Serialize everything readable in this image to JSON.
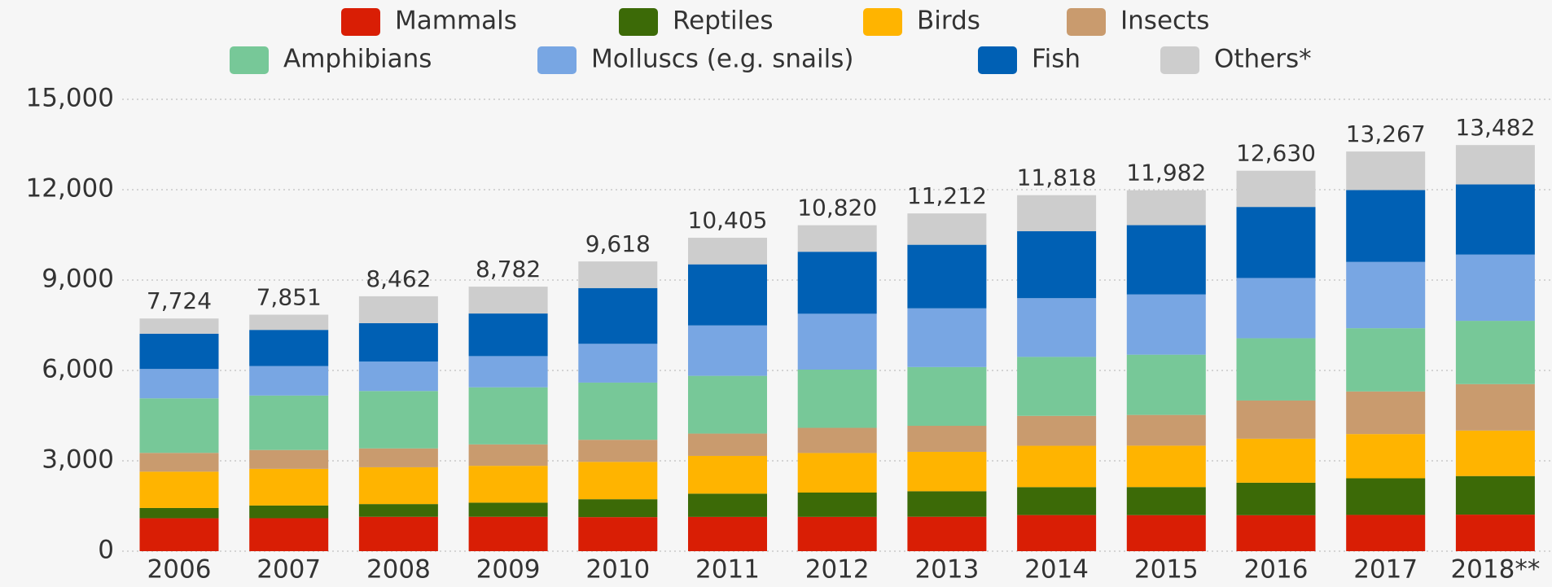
{
  "chart_data": {
    "type": "stacked-bar",
    "categories": [
      "2006",
      "2007",
      "2008",
      "2009",
      "2010",
      "2011",
      "2012",
      "2013",
      "2014",
      "2015",
      "2016",
      "2017",
      "2018**"
    ],
    "series": [
      {
        "name": "Mammals",
        "color": "#d91e05",
        "values": [
          1093,
          1094,
          1141,
          1142,
          1131,
          1138,
          1139,
          1143,
          1199,
          1197,
          1194,
          1204,
          1214
        ]
      },
      {
        "name": "Reptiles",
        "color": "#3c6a07",
        "values": [
          341,
          422,
          423,
          469,
          594,
          772,
          807,
          847,
          927,
          931,
          1079,
          1215,
          1280
        ]
      },
      {
        "name": "Birds",
        "color": "#ffb400",
        "values": [
          1206,
          1217,
          1222,
          1223,
          1240,
          1253,
          1313,
          1308,
          1373,
          1375,
          1460,
          1469,
          1510
        ]
      },
      {
        "name": "Insects",
        "color": "#c99b6e",
        "values": [
          623,
          626,
          626,
          711,
          733,
          741,
          835,
          864,
          993,
          1020,
          1268,
          1414,
          1542
        ]
      },
      {
        "name": "Amphibians",
        "color": "#77c898",
        "values": [
          1811,
          1808,
          1905,
          1895,
          1898,
          1917,
          1933,
          1950,
          1957,
          2000,
          2068,
          2100,
          2101
        ]
      },
      {
        "name": "Molluscs (e.g. snails)",
        "color": "#78a6e3",
        "values": [
          975,
          978,
          978,
          1036,
          1288,
          1673,
          1855,
          1950,
          1950,
          2000,
          2000,
          2200,
          2199
        ]
      },
      {
        "name": "Fish",
        "color": "#0060b4",
        "values": [
          1171,
          1201,
          1275,
          1414,
          1851,
          2028,
          2058,
          2110,
          2222,
          2300,
          2359,
          2386,
          2329
        ]
      },
      {
        "name": "Others*",
        "color": "#cdcdcd",
        "values": [
          504,
          505,
          892,
          892,
          883,
          883,
          880,
          1040,
          1197,
          1159,
          1202,
          1279,
          1307
        ]
      }
    ],
    "totals": [
      7724,
      7851,
      8462,
      8782,
      9618,
      10405,
      10820,
      11212,
      11818,
      11982,
      12630,
      13267,
      13482
    ],
    "total_labels": [
      "7,724",
      "7,851",
      "8,462",
      "8,782",
      "9,618",
      "10,405",
      "10,820",
      "11,212",
      "11,818",
      "11,982",
      "12,630",
      "13,267",
      "13,482"
    ],
    "ylim": [
      0,
      15000
    ],
    "yticks": [
      0,
      {
        "value": 3000,
        "label": "3,000"
      },
      {
        "value": 6000,
        "label": "6,000"
      },
      {
        "value": 9000,
        "label": "9,000"
      },
      {
        "value": 12000,
        "label": "12,000"
      },
      {
        "value": 15000,
        "label": "15,000"
      }
    ],
    "grid": true
  }
}
